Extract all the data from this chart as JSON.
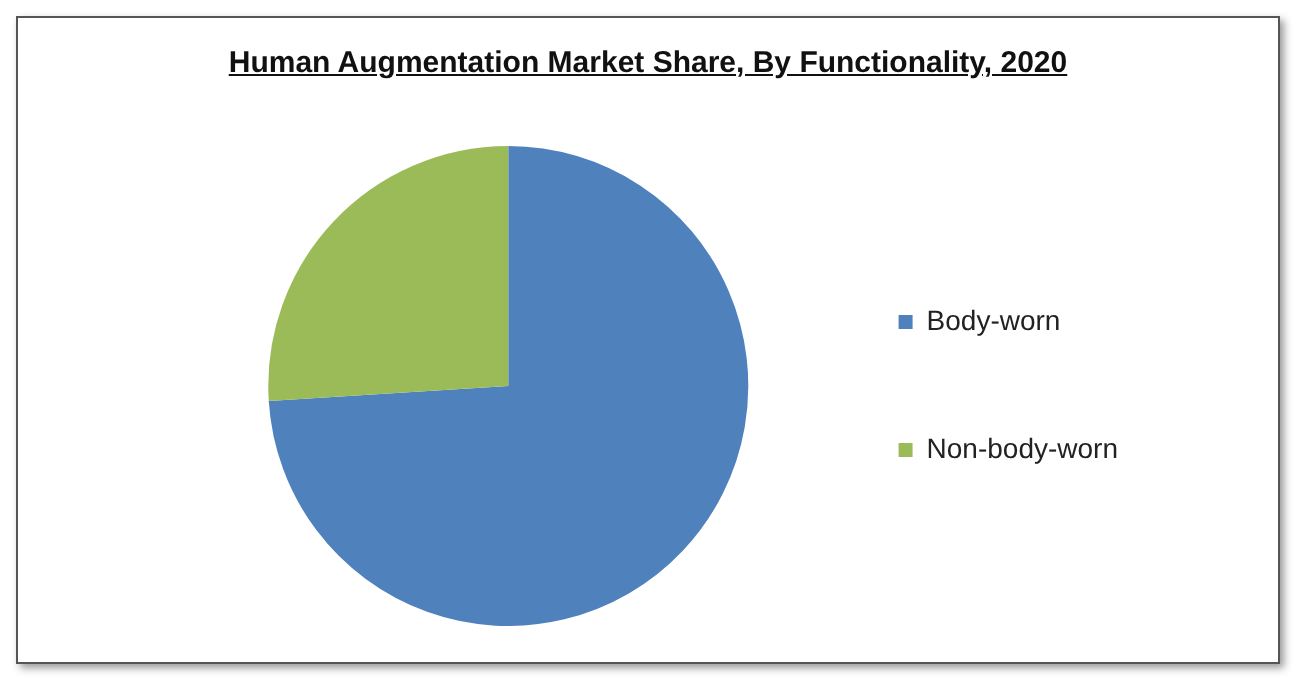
{
  "chart_data": {
    "type": "pie",
    "title": "Human Augmentation Market Share, By Functionality, 2020",
    "categories": [
      "Body-worn",
      "Non-body-worn"
    ],
    "values": [
      74,
      26
    ],
    "colors": [
      "#4f81bd",
      "#9bbb59"
    ],
    "legend": "right"
  }
}
